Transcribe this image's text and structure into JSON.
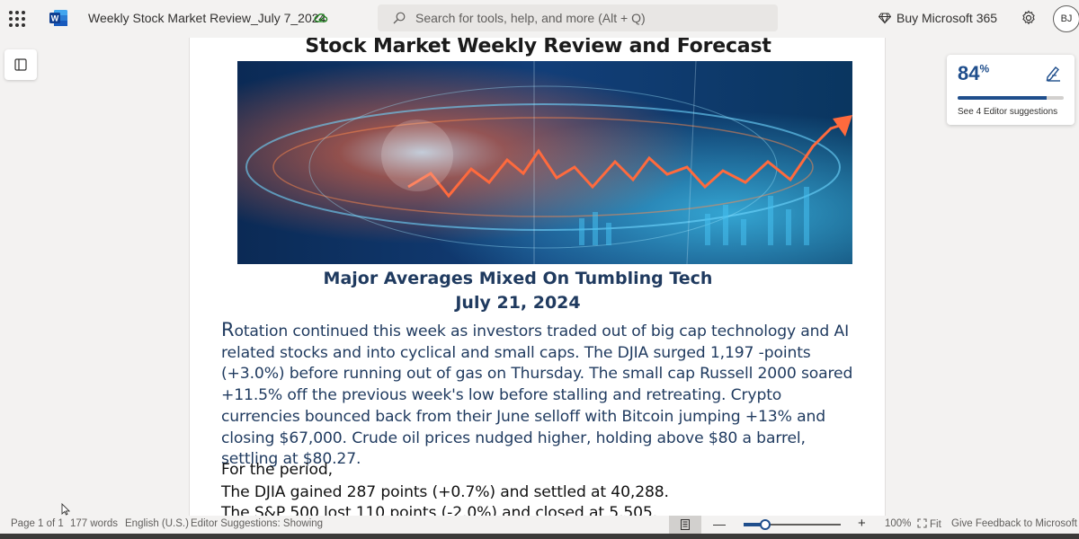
{
  "app": {
    "title": "Weekly Stock Market Review_July 7_2024",
    "search_placeholder": "Search for tools, help, and more (Alt + Q)",
    "buy_label": "Buy Microsoft 365",
    "avatar_initials": "BJ"
  },
  "document": {
    "title": "Stock Market Weekly Review and Forecast",
    "subtitle": "Major Averages Mixed On Tumbling Tech",
    "date": "July 21, 2024",
    "dropcap": "R",
    "paragraph": "otation continued this week as investors traded out of big cap technology and AI related stocks and into cyclical and small caps. The DJIA surged 1,197 -points (+3.0%) before running out of gas on Thursday. The small cap Russell 2000 soared +11.5% off the previous week's low before stalling and retreating. Crypto currencies bounced back from their June selloff with Bitcoin jumping +13% and closing $67,000. Crude oil prices nudged higher, holding above $80 a barrel, settling at $80.27.",
    "lines": [
      "For the period,",
      "The DJIA gained 287 points (+0.7%) and settled at 40,288.",
      "The S&P 500 lost 110 points (-2.0%) and closed at 5,505."
    ]
  },
  "editor": {
    "score": "84",
    "score_unit": "%",
    "score_fraction": 0.84,
    "suggestions_label": "See 4 Editor suggestions"
  },
  "status": {
    "page": "Page 1 of 1",
    "words": "177 words",
    "language": "English (U.S.)",
    "suggestions": "Editor Suggestions: Showing",
    "zoom": "100%",
    "fit": "Fit",
    "feedback": "Give Feedback to Microsoft",
    "zoom_slider_fraction": 0.22
  },
  "colors": {
    "accent": "#1f4e8c",
    "heading_blue": "#1f3a5f"
  },
  "icons": [
    "waffle-icon",
    "word-icon",
    "cloud-saved-icon",
    "search-icon",
    "diamond-icon",
    "gear-icon",
    "navigation-pane-icon",
    "editor-pen-icon",
    "print-layout-icon",
    "fit-icon",
    "mouse-cursor-icon"
  ]
}
